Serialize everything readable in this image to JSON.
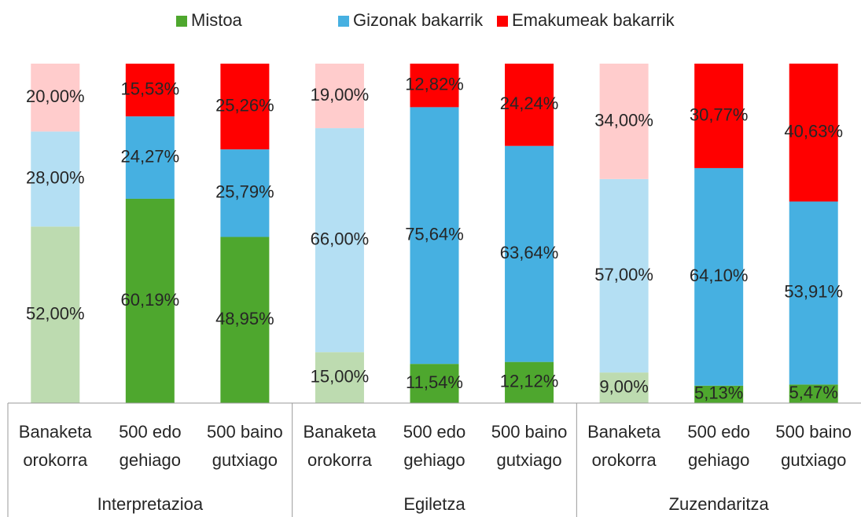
{
  "chart_data": {
    "type": "stacked_bar",
    "groups": [
      "Interpretazioa",
      "Egiletza",
      "Zuzendaritza"
    ],
    "categories": [
      [
        "Banaketa",
        "orokorra"
      ],
      [
        "500 edo",
        "gehiago"
      ],
      [
        "500 baino",
        "gutxiago"
      ],
      [
        "Banaketa",
        "orokorra"
      ],
      [
        "500 edo",
        "gehiago"
      ],
      [
        "500 baino",
        "gutxiago"
      ],
      [
        "Banaketa",
        "orokorra"
      ],
      [
        "500 edo",
        "gehiago"
      ],
      [
        "500 baino",
        "gutxiago"
      ]
    ],
    "ylim": [
      0,
      100
    ],
    "series": [
      {
        "name": "Mistoa",
        "color": "#4ea72e",
        "colors": [
          "#bddbb0",
          "#4ea72e",
          "#4ea72e",
          "#bddbb0",
          "#4ea72e",
          "#4ea72e",
          "#bddbb0",
          "#4ea72e",
          "#4ea72e"
        ],
        "values": [
          52,
          60.19,
          48.95,
          15,
          11.54,
          12.12,
          9,
          5.13,
          5.47
        ],
        "value_labels": [
          "52,00%",
          "60,19%",
          "48,95%",
          "15,00%",
          "11,54%",
          "12,12%",
          "9,00%",
          "5,13%",
          "5,47%"
        ]
      },
      {
        "name": "Gizonak bakarrik",
        "color": "#46b0e1",
        "colors": [
          "#b4dff3",
          "#46b0e1",
          "#46b0e1",
          "#b4dff3",
          "#46b0e1",
          "#46b0e1",
          "#b4dff3",
          "#46b0e1",
          "#46b0e1"
        ],
        "values": [
          28,
          24.27,
          25.79,
          66,
          75.64,
          63.64,
          57,
          64.1,
          53.91
        ],
        "value_labels": [
          "28,00%",
          "24,27%",
          "25,79%",
          "66,00%",
          "75,64%",
          "63,64%",
          "57,00%",
          "64,10%",
          "53,91%"
        ]
      },
      {
        "name": "Emakumeak bakarrik",
        "color": "#ff0000",
        "colors": [
          "#ffcccc",
          "#ff0000",
          "#ff0000",
          "#ffcccc",
          "#ff0000",
          "#ff0000",
          "#ffcccc",
          "#ff0000",
          "#ff0000"
        ],
        "values": [
          20,
          15.53,
          25.26,
          19,
          12.82,
          24.24,
          34,
          30.77,
          40.63
        ],
        "value_labels": [
          "20,00%",
          "15,53%",
          "25,26%",
          "19,00%",
          "12,82%",
          "24,24%",
          "34,00%",
          "30,77%",
          "40,63%"
        ]
      }
    ]
  }
}
